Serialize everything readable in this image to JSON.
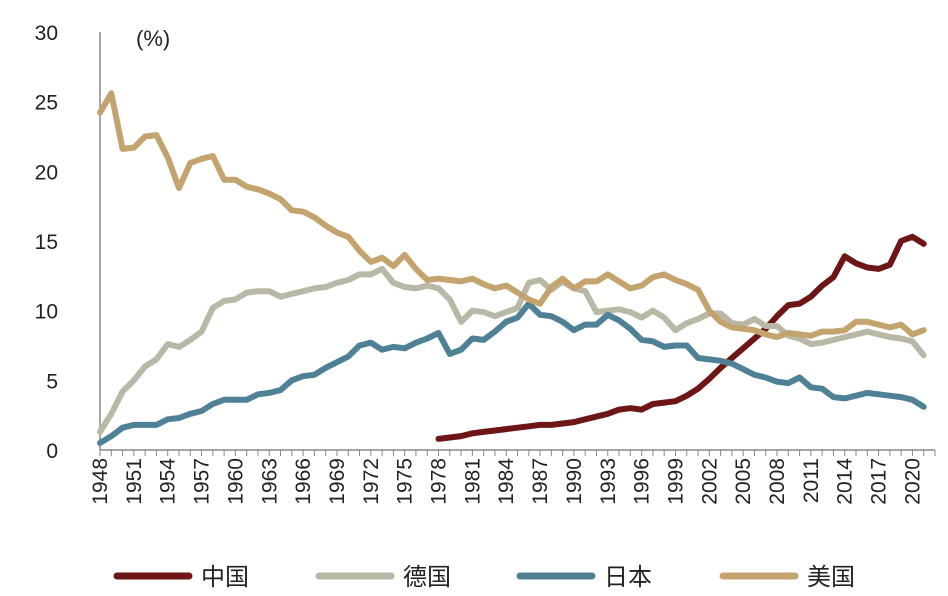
{
  "chart_data": {
    "type": "line",
    "unit_label": "(%)",
    "title": "",
    "xlabel": "",
    "ylabel": "",
    "ylim": [
      0,
      30
    ],
    "y_ticks": [
      "0",
      "5",
      "10",
      "15",
      "20",
      "25",
      "30"
    ],
    "x_start": 1948,
    "x_end": 2022,
    "x_tick_labels": [
      "1948",
      "1951",
      "1954",
      "1957",
      "1960",
      "1963",
      "1966",
      "1969",
      "1972",
      "1975",
      "1978",
      "1981",
      "1984",
      "1987",
      "1990",
      "1993",
      "1996",
      "1999",
      "2002",
      "2005",
      "2008",
      "2011",
      "2014",
      "2017",
      "2020"
    ],
    "grid": false,
    "legend_position": "bottom",
    "series": [
      {
        "name": "中国",
        "color": "#6e1616",
        "start_year": 1978,
        "values": [
          0.8,
          0.9,
          1.0,
          1.2,
          1.3,
          1.4,
          1.5,
          1.6,
          1.7,
          1.8,
          1.8,
          1.9,
          2.0,
          2.2,
          2.4,
          2.6,
          2.9,
          3.0,
          2.9,
          3.3,
          3.4,
          3.5,
          3.9,
          4.4,
          5.1,
          5.9,
          6.6,
          7.3,
          8.0,
          8.7,
          9.6,
          10.4,
          10.5,
          11.0,
          11.8,
          12.4,
          13.9,
          13.4,
          13.1,
          13.0,
          13.3,
          15.0,
          15.3,
          14.8
        ]
      },
      {
        "name": "德国",
        "color": "#b9b8a7",
        "start_year": 1948,
        "values": [
          1.3,
          2.6,
          4.2,
          5.0,
          6.0,
          6.5,
          7.6,
          7.4,
          7.9,
          8.5,
          10.2,
          10.7,
          10.8,
          11.3,
          11.4,
          11.4,
          11.0,
          11.2,
          11.4,
          11.6,
          11.7,
          12.0,
          12.2,
          12.6,
          12.6,
          13.0,
          12.0,
          11.7,
          11.6,
          11.8,
          11.6,
          10.8,
          9.2,
          10.0,
          9.9,
          9.6,
          9.9,
          10.2,
          12.0,
          12.2,
          11.5,
          12.1,
          11.6,
          11.4,
          9.9,
          10.0,
          10.1,
          9.9,
          9.5,
          10.0,
          9.5,
          8.6,
          9.1,
          9.4,
          9.8,
          9.8,
          9.1,
          9.0,
          9.4,
          8.9,
          8.9,
          8.2,
          8.0,
          7.6,
          7.7,
          7.9,
          8.1,
          8.3,
          8.5,
          8.3,
          8.1,
          8.0,
          7.8,
          6.8
        ]
      },
      {
        "name": "日本",
        "color": "#4f8196",
        "start_year": 1948,
        "values": [
          0.5,
          1.0,
          1.6,
          1.8,
          1.8,
          1.8,
          2.2,
          2.3,
          2.6,
          2.8,
          3.3,
          3.6,
          3.6,
          3.6,
          4.0,
          4.1,
          4.3,
          5.0,
          5.3,
          5.4,
          5.9,
          6.3,
          6.7,
          7.5,
          7.7,
          7.2,
          7.4,
          7.3,
          7.7,
          8.0,
          8.4,
          6.9,
          7.2,
          8.0,
          7.9,
          8.5,
          9.2,
          9.5,
          10.5,
          9.7,
          9.6,
          9.2,
          8.6,
          9.0,
          9.0,
          9.7,
          9.3,
          8.7,
          7.9,
          7.8,
          7.4,
          7.5,
          7.5,
          6.6,
          6.5,
          6.4,
          6.2,
          5.8,
          5.4,
          5.2,
          4.9,
          4.8,
          5.2,
          4.5,
          4.4,
          3.8,
          3.7,
          3.9,
          4.1,
          4.0,
          3.9,
          3.8,
          3.6,
          3.1
        ]
      },
      {
        "name": "美国",
        "color": "#c4a46e",
        "start_year": 1948,
        "values": [
          24.2,
          25.6,
          21.6,
          21.7,
          22.5,
          22.6,
          21.0,
          18.8,
          20.6,
          20.9,
          21.1,
          19.4,
          19.4,
          18.9,
          18.7,
          18.4,
          18.0,
          17.2,
          17.1,
          16.7,
          16.1,
          15.6,
          15.3,
          14.3,
          13.5,
          13.8,
          13.2,
          14.0,
          13.0,
          12.2,
          12.3,
          12.2,
          12.1,
          12.3,
          11.9,
          11.6,
          11.8,
          11.3,
          10.8,
          10.5,
          11.7,
          12.3,
          11.6,
          12.1,
          12.1,
          12.6,
          12.1,
          11.6,
          11.8,
          12.4,
          12.6,
          12.2,
          11.9,
          11.5,
          10.0,
          9.2,
          8.8,
          8.7,
          8.6,
          8.3,
          8.1,
          8.4,
          8.3,
          8.2,
          8.5,
          8.5,
          8.6,
          9.2,
          9.2,
          9.0,
          8.8,
          9.0,
          8.3,
          8.6
        ]
      }
    ]
  }
}
